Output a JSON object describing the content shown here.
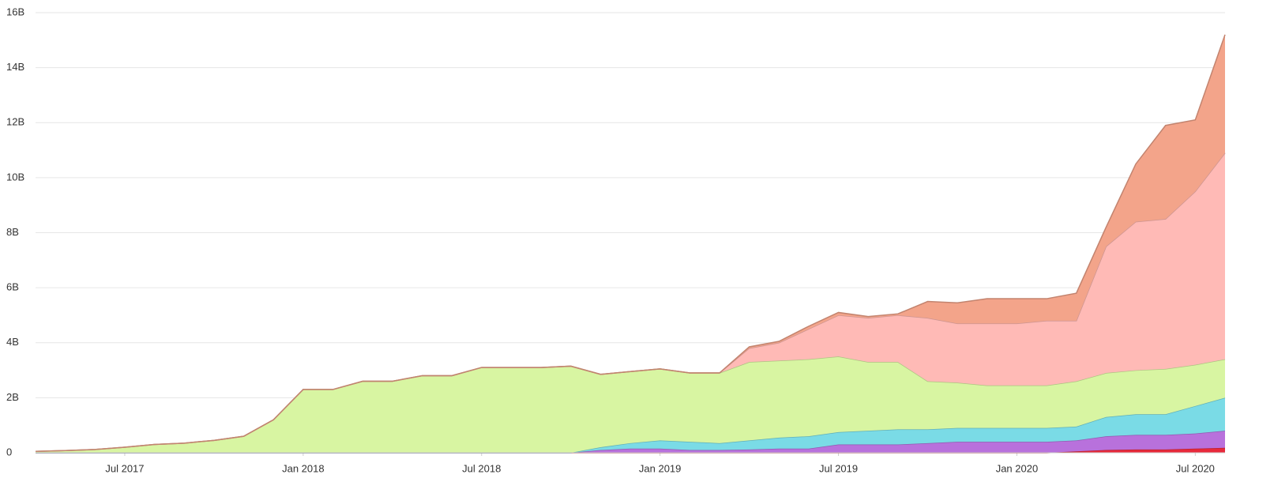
{
  "chart_data": {
    "type": "stacked-area",
    "x": [
      "2017-04",
      "2017-05",
      "2017-06",
      "2017-07",
      "2017-08",
      "2017-09",
      "2017-10",
      "2017-11",
      "2017-12",
      "2018-01",
      "2018-02",
      "2018-03",
      "2018-04",
      "2018-05",
      "2018-06",
      "2018-07",
      "2018-08",
      "2018-09",
      "2018-10",
      "2018-11",
      "2018-12",
      "2019-01",
      "2019-02",
      "2019-03",
      "2019-04",
      "2019-05",
      "2019-06",
      "2019-07",
      "2019-08",
      "2019-09",
      "2019-10",
      "2019-11",
      "2019-12",
      "2020-01",
      "2020-02",
      "2020-03",
      "2020-04",
      "2020-05",
      "2020-06",
      "2020-07",
      "2020-08"
    ],
    "xlim": [
      "2017-04",
      "2020-08"
    ],
    "xticks": [
      {
        "value": "2017-07",
        "label": "Jul 2017"
      },
      {
        "value": "2018-01",
        "label": "Jan 2018"
      },
      {
        "value": "2018-07",
        "label": "Jul 2018"
      },
      {
        "value": "2019-01",
        "label": "Jan 2019"
      },
      {
        "value": "2019-07",
        "label": "Jul 2019"
      },
      {
        "value": "2020-01",
        "label": "Jan 2020"
      },
      {
        "value": "2020-07",
        "label": "Jul 2020"
      }
    ],
    "ylim": [
      0,
      16
    ],
    "yticks": [
      0,
      {
        "value": 2,
        "label": "2B"
      },
      {
        "value": 4,
        "label": "4B"
      },
      {
        "value": 6,
        "label": "6B"
      },
      {
        "value": 8,
        "label": "8B"
      },
      {
        "value": 10,
        "label": "10B"
      },
      {
        "value": 12,
        "label": "12B"
      },
      {
        "value": 14,
        "label": "14B"
      },
      {
        "value": 16,
        "label": "16B"
      }
    ],
    "grid": true,
    "series": [
      {
        "color": "#e8293b",
        "values": [
          0,
          0,
          0,
          0,
          0,
          0,
          0,
          0,
          0,
          0,
          0,
          0,
          0,
          0,
          0,
          0,
          0,
          0,
          0,
          0,
          0,
          0,
          0,
          0,
          0,
          0,
          0,
          0,
          0,
          0,
          0,
          0,
          0,
          0,
          0,
          0.05,
          0.1,
          0.12,
          0.12,
          0.15,
          0.18
        ]
      },
      {
        "color": "#b871dc",
        "values": [
          0,
          0,
          0,
          0,
          0,
          0,
          0,
          0,
          0,
          0,
          0,
          0,
          0,
          0,
          0,
          0,
          0,
          0,
          0,
          0.1,
          0.15,
          0.15,
          0.1,
          0.1,
          0.12,
          0.15,
          0.15,
          0.3,
          0.3,
          0.3,
          0.35,
          0.4,
          0.4,
          0.4,
          0.4,
          0.4,
          0.5,
          0.53,
          0.53,
          0.55,
          0.62
        ]
      },
      {
        "color": "#7adbe6",
        "values": [
          0,
          0,
          0,
          0,
          0,
          0,
          0,
          0,
          0,
          0,
          0,
          0,
          0,
          0,
          0,
          0,
          0,
          0,
          0,
          0.1,
          0.2,
          0.3,
          0.3,
          0.25,
          0.33,
          0.4,
          0.45,
          0.45,
          0.5,
          0.55,
          0.5,
          0.5,
          0.5,
          0.5,
          0.5,
          0.5,
          0.7,
          0.75,
          0.75,
          1.0,
          1.2
        ]
      },
      {
        "color": "#d8f5a2",
        "values": [
          0.05,
          0.08,
          0.12,
          0.2,
          0.3,
          0.35,
          0.45,
          0.6,
          1.2,
          2.3,
          2.3,
          2.6,
          2.6,
          2.8,
          2.8,
          3.1,
          3.1,
          3.1,
          3.15,
          2.65,
          2.6,
          2.6,
          2.5,
          2.55,
          2.85,
          2.8,
          2.8,
          2.75,
          2.5,
          2.45,
          1.75,
          1.65,
          1.55,
          1.55,
          1.55,
          1.65,
          1.6,
          1.6,
          1.65,
          1.5,
          1.4
        ]
      },
      {
        "color": "#ffbab6",
        "values": [
          0,
          0,
          0,
          0,
          0,
          0,
          0,
          0,
          0,
          0,
          0,
          0,
          0,
          0,
          0,
          0,
          0,
          0,
          0,
          0,
          0,
          0,
          0,
          0,
          0.5,
          0.65,
          1.1,
          1.5,
          1.6,
          1.7,
          2.3,
          2.15,
          2.25,
          2.25,
          2.35,
          2.2,
          4.6,
          5.4,
          5.45,
          6.3,
          7.5
        ]
      },
      {
        "color": "#f3a48a",
        "values": [
          0,
          0,
          0,
          0,
          0,
          0,
          0,
          0,
          0,
          0,
          0,
          0,
          0,
          0,
          0,
          0,
          0,
          0,
          0,
          0,
          0,
          0,
          0,
          0,
          0.05,
          0.05,
          0.1,
          0.1,
          0.05,
          0.05,
          0.6,
          0.75,
          0.9,
          0.9,
          0.8,
          1.0,
          0.7,
          2.1,
          3.4,
          2.6,
          4.3
        ]
      }
    ]
  }
}
